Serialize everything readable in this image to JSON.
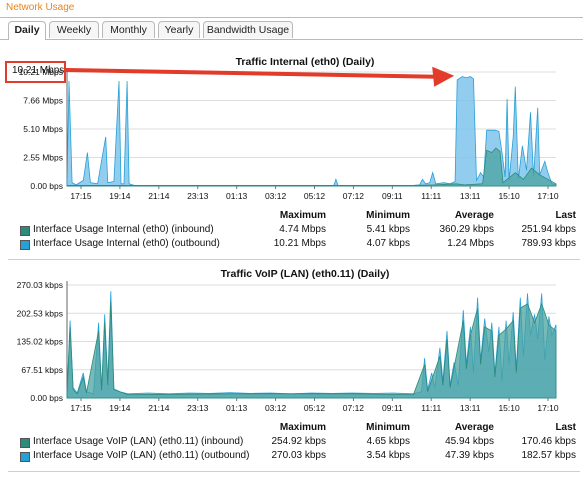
{
  "header": {
    "title": "Network Usage"
  },
  "tabs": [
    "Daily",
    "Weekly",
    "Monthly",
    "Yearly",
    "Bandwidth Usage"
  ],
  "active_tab": "Daily",
  "colors": {
    "inbound": "#2e8a7a",
    "outbound": "#27a0d6",
    "outbound_fill": "#7fc4ec",
    "inbound_fill": "#4aa3a0",
    "callout": "#e23b2a",
    "accent": "#e8841b"
  },
  "callout": {
    "text": "10.21 Mbps"
  },
  "stats_headers": {
    "max": "Maximum",
    "min": "Minimum",
    "avg": "Average",
    "last": "Last"
  },
  "chart_data": [
    {
      "type": "area",
      "title": "Traffic Internal (eth0) (Daily)",
      "yticks": [
        "10.21 Mbps",
        "7.66 Mbps",
        "5.10 Mbps",
        "2.55 Mbps",
        "0.00 bps"
      ],
      "ylim": [
        0,
        10.21
      ],
      "yunit": "Mbps",
      "xticks": [
        "17:15",
        "19:14",
        "21:14",
        "23:13",
        "01:13",
        "03:12",
        "05:12",
        "07:12",
        "09:11",
        "11:11",
        "13:11",
        "15:10",
        "17:10"
      ],
      "xlim": [
        0,
        24
      ],
      "series": [
        {
          "name": "Interface Usage Internal (eth0) (outbound)",
          "points": [
            [
              0.0,
              0.1
            ],
            [
              0.1,
              9.4
            ],
            [
              0.25,
              0.3
            ],
            [
              0.45,
              0.1
            ],
            [
              0.8,
              0.5
            ],
            [
              1.0,
              3.0
            ],
            [
              1.15,
              0.3
            ],
            [
              1.5,
              0.2
            ],
            [
              1.9,
              4.4
            ],
            [
              2.0,
              0.3
            ],
            [
              2.3,
              0.4
            ],
            [
              2.55,
              9.4
            ],
            [
              2.65,
              0.2
            ],
            [
              2.8,
              0.2
            ],
            [
              2.95,
              9.4
            ],
            [
              3.05,
              0.2
            ],
            [
              3.3,
              0.05
            ],
            [
              6.0,
              0.05
            ],
            [
              9.0,
              0.05
            ],
            [
              13.1,
              0.05
            ],
            [
              13.2,
              0.6
            ],
            [
              13.3,
              0.05
            ],
            [
              17.0,
              0.05
            ],
            [
              17.3,
              0.1
            ],
            [
              17.45,
              0.6
            ],
            [
              17.6,
              0.2
            ],
            [
              17.8,
              0.3
            ],
            [
              17.95,
              1.2
            ],
            [
              18.1,
              0.2
            ],
            [
              18.5,
              0.3
            ],
            [
              18.8,
              0.2
            ],
            [
              19.05,
              0.4
            ],
            [
              19.15,
              9.5
            ],
            [
              19.4,
              9.8
            ],
            [
              19.6,
              9.7
            ],
            [
              19.8,
              9.8
            ],
            [
              19.95,
              9.6
            ],
            [
              20.1,
              0.5
            ],
            [
              20.3,
              1.2
            ],
            [
              20.45,
              0.8
            ],
            [
              20.6,
              5.0
            ],
            [
              20.8,
              5.0
            ],
            [
              21.0,
              5.0
            ],
            [
              21.2,
              4.9
            ],
            [
              21.35,
              3.0
            ],
            [
              21.5,
              0.8
            ],
            [
              21.6,
              7.8
            ],
            [
              21.7,
              0.5
            ],
            [
              21.9,
              4.4
            ],
            [
              22.0,
              8.9
            ],
            [
              22.15,
              0.6
            ],
            [
              22.35,
              3.6
            ],
            [
              22.55,
              1.4
            ],
            [
              22.75,
              6.6
            ],
            [
              22.9,
              0.8
            ],
            [
              23.1,
              7.0
            ],
            [
              23.2,
              1.0
            ],
            [
              23.45,
              2.2
            ],
            [
              23.6,
              1.2
            ],
            [
              23.8,
              0.2
            ],
            [
              24.0,
              0.1
            ]
          ]
        },
        {
          "name": "Interface Usage Internal (eth0) (inbound)",
          "points": [
            [
              0.0,
              0.05
            ],
            [
              2.0,
              0.05
            ],
            [
              17.0,
              0.05
            ],
            [
              18.0,
              0.1
            ],
            [
              19.1,
              0.2
            ],
            [
              19.5,
              0.1
            ],
            [
              20.4,
              0.2
            ],
            [
              20.6,
              3.2
            ],
            [
              20.85,
              3.0
            ],
            [
              21.05,
              3.4
            ],
            [
              21.25,
              3.1
            ],
            [
              21.4,
              0.3
            ],
            [
              22.0,
              1.2
            ],
            [
              22.4,
              0.6
            ],
            [
              22.8,
              1.6
            ],
            [
              23.2,
              1.0
            ],
            [
              23.6,
              0.6
            ],
            [
              24.0,
              0.2
            ]
          ]
        }
      ],
      "stats": [
        {
          "label": "Interface Usage Internal (eth0) (inbound)",
          "max": "4.74 Mbps",
          "min": "5.41 kbps",
          "avg": "360.29 kbps",
          "last": "251.94 kbps"
        },
        {
          "label": "Interface Usage Internal (eth0) (outbound)",
          "max": "10.21 Mbps",
          "min": "4.07 kbps",
          "avg": "1.24 Mbps",
          "last": "789.93 kbps"
        }
      ]
    },
    {
      "type": "area",
      "title": "Traffic VoIP (LAN) (eth0.11) (Daily)",
      "yticks": [
        "270.03 kbps",
        "202.53 kbps",
        "135.02 kbps",
        "67.51 kbps",
        "0.00 bps"
      ],
      "ylim": [
        0,
        270.03
      ],
      "yunit": "kbps",
      "xticks": [
        "17:15",
        "19:14",
        "21:14",
        "23:13",
        "01:13",
        "03:12",
        "05:12",
        "07:12",
        "09:11",
        "11:11",
        "13:11",
        "15:10",
        "17:10"
      ],
      "xlim": [
        0,
        24
      ],
      "series": [
        {
          "name": "Interface Usage VoIP (LAN) (eth0.11) (outbound)",
          "points": [
            [
              0.0,
              10
            ],
            [
              0.15,
              185
            ],
            [
              0.3,
              25
            ],
            [
              0.5,
              12
            ],
            [
              0.8,
              60
            ],
            [
              0.95,
              15
            ],
            [
              1.3,
              10
            ],
            [
              1.55,
              180
            ],
            [
              1.7,
              20
            ],
            [
              1.85,
              200
            ],
            [
              2.0,
              40
            ],
            [
              2.15,
              255
            ],
            [
              2.3,
              22
            ],
            [
              2.6,
              15
            ],
            [
              3.0,
              10
            ],
            [
              4.0,
              12
            ],
            [
              5.0,
              10
            ],
            [
              6.0,
              12
            ],
            [
              7.0,
              11
            ],
            [
              8.0,
              13
            ],
            [
              9.0,
              11
            ],
            [
              10.0,
              12
            ],
            [
              11.0,
              10
            ],
            [
              12.0,
              12
            ],
            [
              13.0,
              11
            ],
            [
              14.0,
              12
            ],
            [
              15.0,
              11
            ],
            [
              16.0,
              12
            ],
            [
              17.0,
              10
            ],
            [
              17.4,
              15
            ],
            [
              17.55,
              95
            ],
            [
              17.7,
              20
            ],
            [
              17.9,
              60
            ],
            [
              18.05,
              25
            ],
            [
              18.3,
              120
            ],
            [
              18.45,
              40
            ],
            [
              18.65,
              160
            ],
            [
              18.8,
              30
            ],
            [
              19.0,
              85
            ],
            [
              19.2,
              30
            ],
            [
              19.45,
              210
            ],
            [
              19.6,
              80
            ],
            [
              19.8,
              170
            ],
            [
              19.95,
              60
            ],
            [
              20.15,
              240
            ],
            [
              20.3,
              90
            ],
            [
              20.5,
              190
            ],
            [
              20.7,
              110
            ],
            [
              20.85,
              180
            ],
            [
              21.0,
              60
            ],
            [
              21.2,
              170
            ],
            [
              21.35,
              40
            ],
            [
              21.55,
              185
            ],
            [
              21.7,
              80
            ],
            [
              21.9,
              205
            ],
            [
              22.05,
              70
            ],
            [
              22.25,
              240
            ],
            [
              22.4,
              100
            ],
            [
              22.6,
              250
            ],
            [
              22.75,
              150
            ],
            [
              22.95,
              200
            ],
            [
              23.1,
              140
            ],
            [
              23.3,
              250
            ],
            [
              23.45,
              90
            ],
            [
              23.65,
              195
            ],
            [
              23.8,
              150
            ],
            [
              24.0,
              175
            ]
          ]
        },
        {
          "name": "Interface Usage VoIP (LAN) (eth0.11) (inbound)",
          "points": [
            [
              0.0,
              8
            ],
            [
              0.15,
              170
            ],
            [
              0.3,
              20
            ],
            [
              0.5,
              10
            ],
            [
              0.8,
              50
            ],
            [
              0.95,
              12
            ],
            [
              1.55,
              160
            ],
            [
              1.7,
              18
            ],
            [
              1.85,
              180
            ],
            [
              2.0,
              30
            ],
            [
              2.15,
              230
            ],
            [
              2.3,
              20
            ],
            [
              3.0,
              8
            ],
            [
              8.0,
              10
            ],
            [
              14.0,
              10
            ],
            [
              17.0,
              8
            ],
            [
              17.55,
              80
            ],
            [
              17.7,
              15
            ],
            [
              18.3,
              100
            ],
            [
              18.45,
              30
            ],
            [
              18.65,
              140
            ],
            [
              18.8,
              25
            ],
            [
              19.45,
              185
            ],
            [
              19.6,
              70
            ],
            [
              19.8,
              150
            ],
            [
              20.15,
              215
            ],
            [
              20.3,
              80
            ],
            [
              20.5,
              170
            ],
            [
              20.85,
              160
            ],
            [
              21.0,
              50
            ],
            [
              21.2,
              150
            ],
            [
              21.55,
              165
            ],
            [
              21.9,
              185
            ],
            [
              22.05,
              60
            ],
            [
              22.25,
              215
            ],
            [
              22.6,
              225
            ],
            [
              22.95,
              180
            ],
            [
              23.3,
              225
            ],
            [
              23.65,
              175
            ],
            [
              24.0,
              160
            ]
          ]
        }
      ],
      "stats": [
        {
          "label": "Interface Usage VoIP (LAN) (eth0.11) (inbound)",
          "max": "254.92 kbps",
          "min": "4.65 kbps",
          "avg": "45.94 kbps",
          "last": "170.46 kbps"
        },
        {
          "label": "Interface Usage VoIP (LAN) (eth0.11) (outbound)",
          "max": "270.03 kbps",
          "min": "3.54 kbps",
          "avg": "47.39 kbps",
          "last": "182.57 kbps"
        }
      ]
    }
  ]
}
